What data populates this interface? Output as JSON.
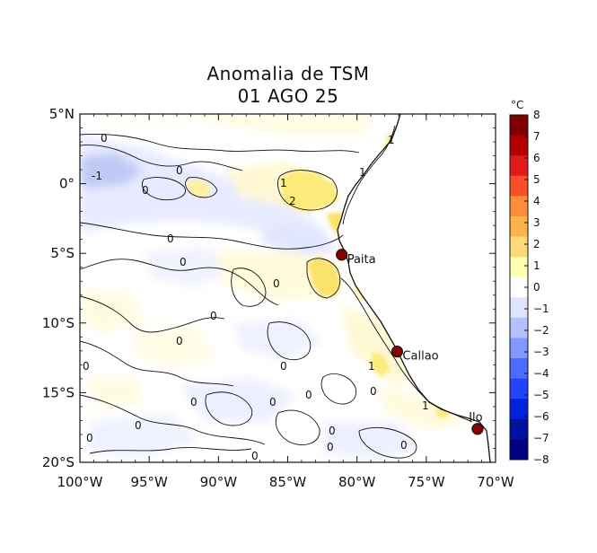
{
  "title": {
    "line1": "Anomalia de TSM",
    "line2": "01 AGO 25"
  },
  "map": {
    "lon_range": [
      -100,
      -70
    ],
    "lat_range": [
      -20,
      5
    ],
    "x_ticks": [
      {
        "lon": -100,
        "label": "100°W"
      },
      {
        "lon": -95,
        "label": "95°W"
      },
      {
        "lon": -90,
        "label": "90°W"
      },
      {
        "lon": -85,
        "label": "85°W"
      },
      {
        "lon": -80,
        "label": "80°W"
      },
      {
        "lon": -75,
        "label": "75°W"
      },
      {
        "lon": -70,
        "label": "70°W"
      }
    ],
    "y_ticks": [
      {
        "lat": 5,
        "label": "5°N"
      },
      {
        "lat": 0,
        "label": "0°"
      },
      {
        "lat": -5,
        "label": "5°S"
      },
      {
        "lat": -10,
        "label": "10°S"
      },
      {
        "lat": -15,
        "label": "15°S"
      },
      {
        "lat": -20,
        "label": "20°S"
      }
    ],
    "land_color": "#ffffff",
    "ocean_neutral_color": "#ffffff"
  },
  "cities": [
    {
      "name": "Paita",
      "lon": -81.1,
      "lat": -5.1
    },
    {
      "name": "Callao",
      "lon": -77.1,
      "lat": -12.05
    },
    {
      "name": "Ilo",
      "lon": -71.3,
      "lat": -17.6
    }
  ],
  "contour_labels": [
    "0",
    "0",
    "0",
    "0",
    "0",
    "0",
    "0",
    "0",
    "0",
    "0",
    "0",
    "0",
    "0",
    "0",
    "0",
    "0",
    "0",
    "0",
    "0",
    "0",
    "1",
    "1",
    "1",
    "1",
    "1",
    "2",
    "-1"
  ],
  "colorbar": {
    "unit": "°C",
    "min": -8,
    "max": 8,
    "ticks": [
      "8",
      "7",
      "6",
      "5",
      "4",
      "3",
      "2",
      "1",
      "0",
      "−1",
      "−2",
      "−3",
      "−4",
      "−5",
      "−6",
      "−7",
      "−8"
    ],
    "colors": [
      "#7f0000",
      "#b30000",
      "#e31a1c",
      "#fc4e2a",
      "#fd8d3c",
      "#feb24c",
      "#fed976",
      "#ffffb2",
      "#ffffff",
      "#dfe4ff",
      "#b3c2ff",
      "#8098ff",
      "#4d6bff",
      "#2244ff",
      "#0022dd",
      "#0010a0",
      "#000080"
    ]
  }
}
